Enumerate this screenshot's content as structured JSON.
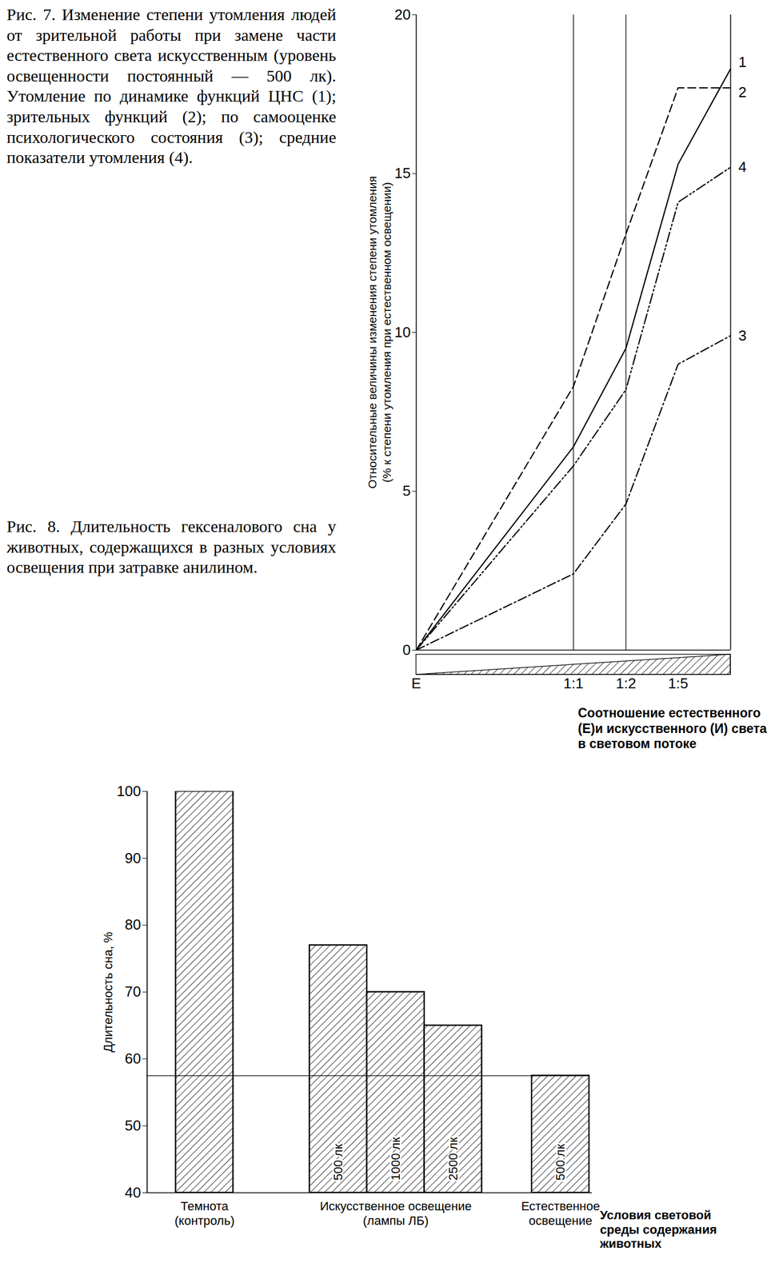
{
  "chart_data": [
    {
      "type": "line",
      "title": "Рис. 7. Изменение степени утомления людей от зрительной работы при замене части естественного света искусственным (уровень освещенности постоянный — 500 лк). Утомление по динамике функций ЦНС (1); зрительных функций (2); по самооценке психологического состояния (3); средние показатели утомления (4).",
      "y_label": "Относительные величины изменения степени утомления\n(% к степени утомления при естественном освещении)",
      "x_label": "Соотношение естественного\n(Е)и искусственного (И) света\nв световом потоке",
      "x": [
        0,
        50,
        66.7,
        83.3,
        100
      ],
      "xlim": [
        0,
        100
      ],
      "xticks": [
        {
          "value": 0,
          "label": "Е"
        },
        {
          "value": 50,
          "label": "1:1"
        },
        {
          "value": 66.7,
          "label": "1:2"
        },
        {
          "value": 83.3,
          "label": "1:5"
        }
      ],
      "reference_lines": [
        50,
        66.7
      ],
      "ylim": [
        0,
        20
      ],
      "yticks": [
        0,
        5,
        10,
        15,
        20
      ],
      "series": [
        {
          "name": "1",
          "color": "#000000",
          "line_style": "solid",
          "values": [
            0,
            6.4,
            9.5,
            15.3,
            18.3
          ]
        },
        {
          "name": "2",
          "color": "#000000",
          "line_style": "dashed",
          "values": [
            0,
            8.3,
            13.1,
            17.7,
            17.7
          ]
        },
        {
          "name": "3",
          "color": "#000000",
          "line_style": "dashdot",
          "values": [
            0,
            2.4,
            4.6,
            9.0,
            9.9
          ]
        },
        {
          "name": "4",
          "color": "#000000",
          "line_style": "dashdotdot",
          "values": [
            0,
            5.8,
            8.2,
            14.1,
            15.2
          ]
        }
      ]
    },
    {
      "type": "bar",
      "title": "Рис. 8. Длительность гексеналового сна у животных, содержащихся в разных условиях освещения при затравке анилином.",
      "y_label": "Длительность сна, %",
      "x_label": "Условия световой\nсреды содержания\nживотных",
      "categories": [
        "Темнота\n(контроль)",
        "Искусственное освещение\n(лампы ЛБ)",
        "Искусственное освещение\n(лампы ЛБ)",
        "Искусственное освещение\n(лампы ЛБ)",
        "Естественное\nосвещение"
      ],
      "values": [
        100,
        77,
        70,
        65,
        57.5
      ],
      "bar_labels": [
        null,
        "500 лк",
        "1000 лк",
        "2500 лк",
        "500 лк"
      ],
      "color": "#000000",
      "reference_lines": [
        57.5
      ],
      "ylim": [
        40,
        100
      ],
      "yticks": [
        40,
        50,
        60,
        70,
        80,
        90,
        100
      ]
    }
  ]
}
